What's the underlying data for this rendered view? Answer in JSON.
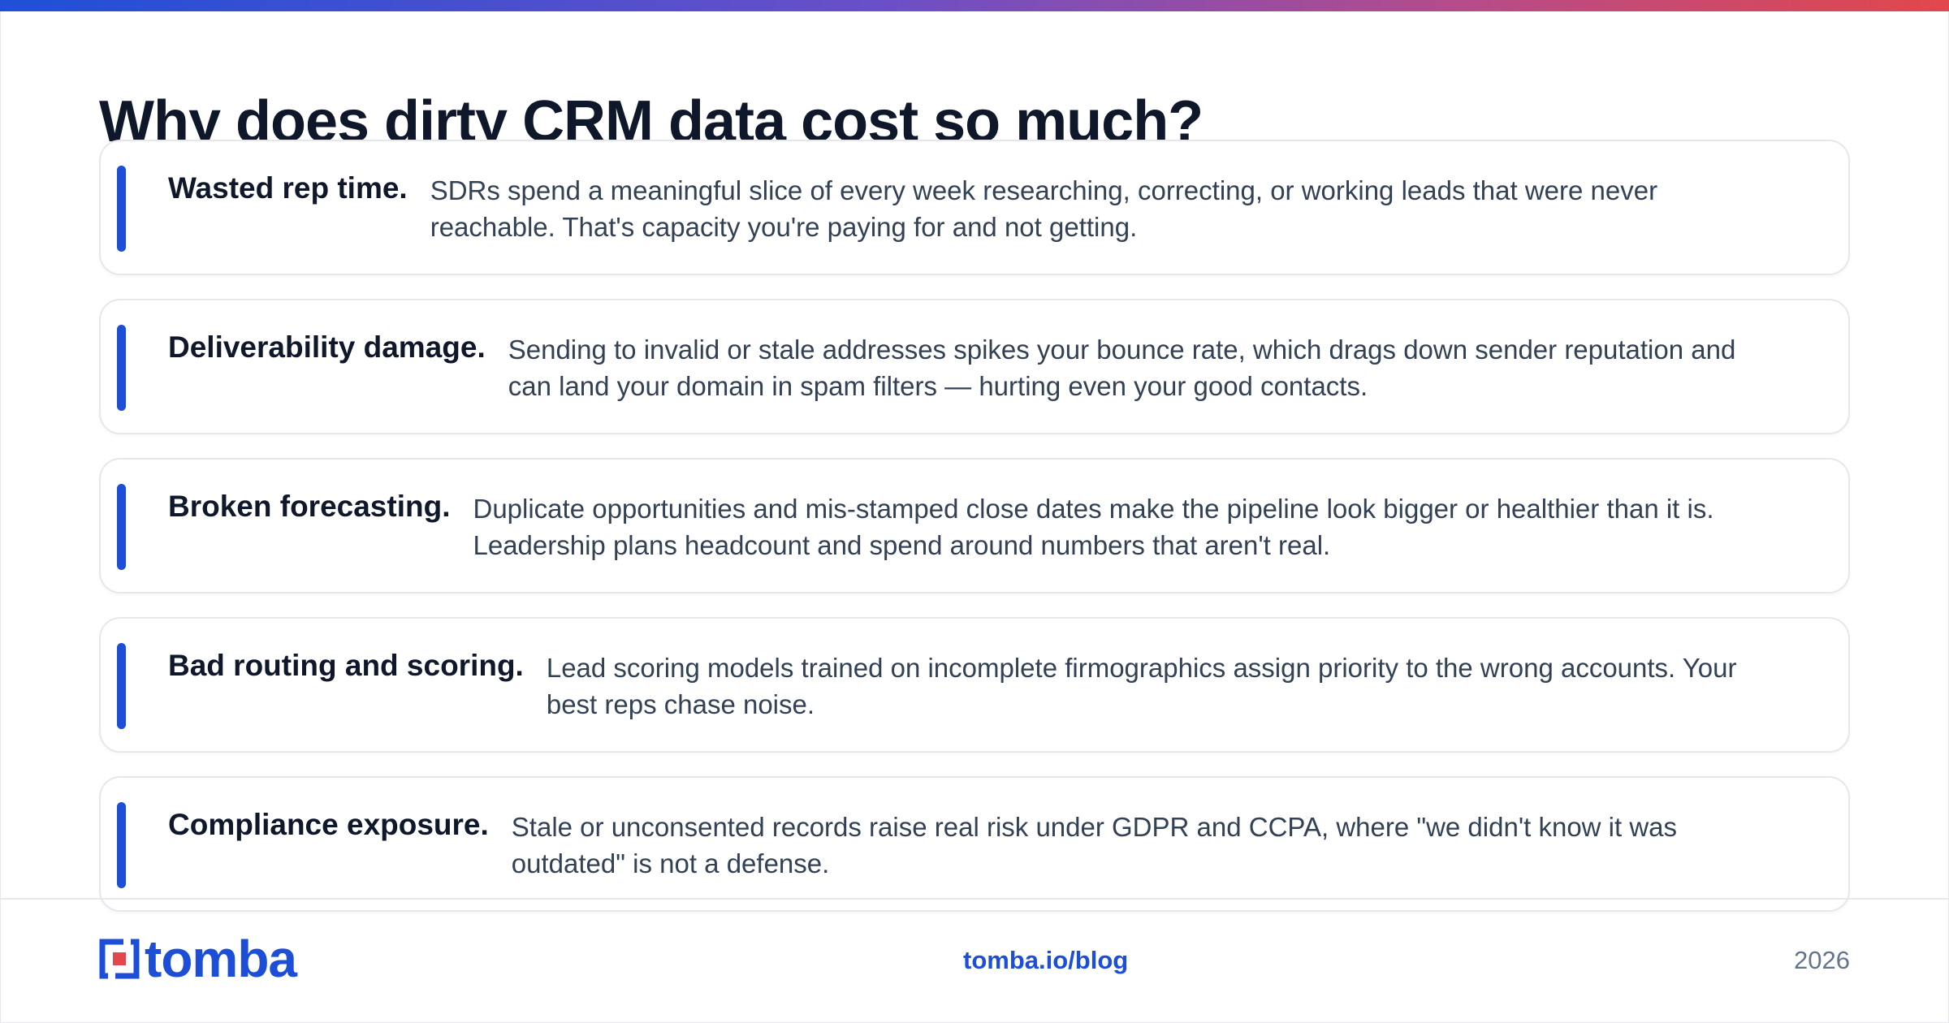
{
  "page": {
    "title": "Why does dirty CRM data cost so much?"
  },
  "cards": [
    {
      "title": "Wasted rep time.",
      "text": "SDRs spend a meaningful slice of every week researching, correcting, or working leads that were never reachable. That's capacity you're paying for and not getting."
    },
    {
      "title": "Deliverability damage.",
      "text": "Sending to invalid or stale addresses spikes your bounce rate, which drags down sender reputation and can land your domain in spam filters — hurting even your good contacts."
    },
    {
      "title": "Broken forecasting.",
      "text": "Duplicate opportunities and mis-stamped close dates make the pipeline look bigger or healthier than it is. Leadership plans headcount and spend around numbers that aren't real."
    },
    {
      "title": "Bad routing and scoring.",
      "text": "Lead scoring models trained on incomplete firmographics assign priority to the wrong accounts. Your best reps chase noise."
    },
    {
      "title": "Compliance exposure.",
      "text": "Stale or unconsented records raise real risk under GDPR and CCPA, where \"we didn't know it was outdated\" is not a defense."
    }
  ],
  "footer": {
    "logo_text": "tomba",
    "link": "tomba.io/blog",
    "year": "2026"
  },
  "colors": {
    "accent": "#1d4ed8",
    "logo_red": "#e2474b",
    "title": "#0f172a",
    "body_text": "#334155"
  }
}
